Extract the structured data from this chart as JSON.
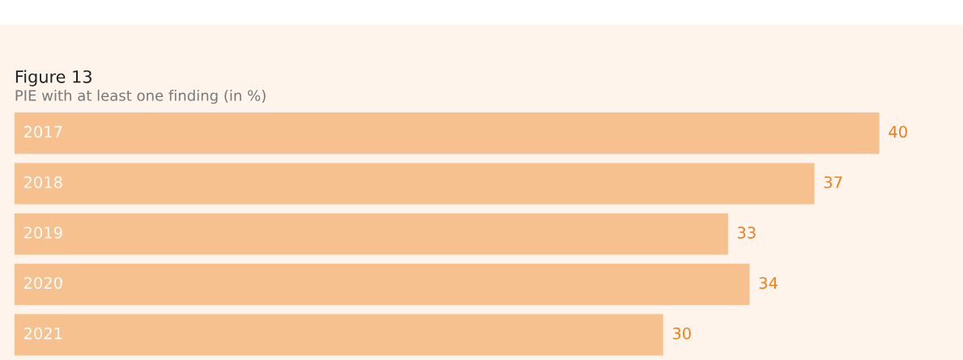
{
  "chart_data": {
    "type": "bar",
    "orientation": "horizontal",
    "title": "Figure 13",
    "subtitle": "PIE with at least one finding (in %)",
    "categories": [
      "2017",
      "2018",
      "2019",
      "2020",
      "2021"
    ],
    "values": [
      40,
      37,
      33,
      34,
      30
    ],
    "color": "#f7c08f",
    "data_labels": true,
    "tick_labels": false
  }
}
